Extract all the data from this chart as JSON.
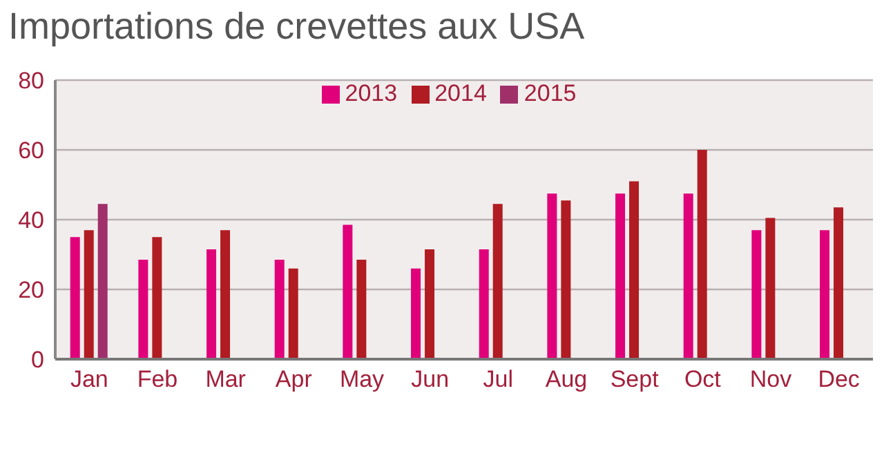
{
  "chart_data": {
    "type": "bar",
    "title": "Importations de crevettes aux USA",
    "categories": [
      "Jan",
      "Feb",
      "Mar",
      "Apr",
      "May",
      "Jun",
      "Jul",
      "Aug",
      "Sept",
      "Oct",
      "Nov",
      "Dec"
    ],
    "series": [
      {
        "name": "2013",
        "color": "#e0007a",
        "values": [
          35,
          28.5,
          31.5,
          28.5,
          38.5,
          26,
          31.5,
          47.5,
          47.5,
          47.5,
          37,
          37
        ]
      },
      {
        "name": "2014",
        "color": "#b01c22",
        "values": [
          37,
          35,
          37,
          26,
          28.5,
          31.5,
          44.5,
          45.5,
          51,
          60,
          40.5,
          43.5
        ]
      },
      {
        "name": "2015",
        "color": "#a0306a",
        "values": [
          44.5,
          null,
          null,
          null,
          null,
          null,
          null,
          null,
          null,
          null,
          null,
          null
        ]
      }
    ],
    "ylim": [
      0,
      80
    ],
    "yticks": [
      0,
      20,
      40,
      60,
      80
    ],
    "grid": "y",
    "legend": "top"
  }
}
